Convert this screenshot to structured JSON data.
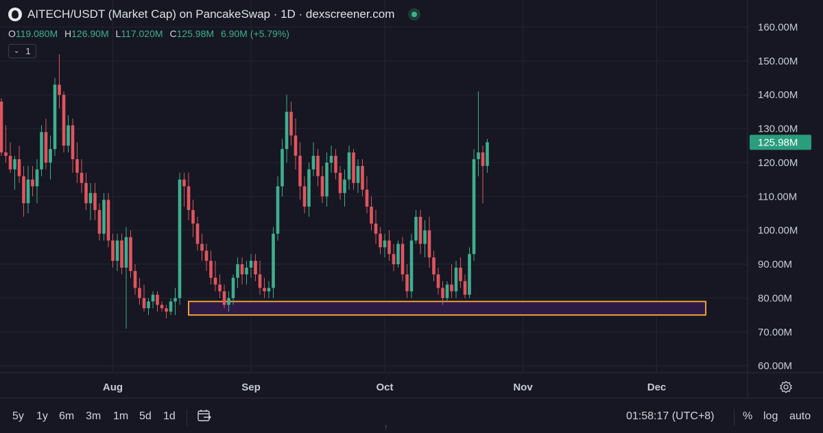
{
  "header": {
    "title": "AITECH/USDT (Market Cap) on PancakeSwap · 1D · dexscreener.com"
  },
  "ohlc": {
    "o_label": "O",
    "o_value": "119.080M",
    "h_label": "H",
    "h_value": "126.90M",
    "l_label": "L",
    "l_value": "117.020M",
    "c_label": "C",
    "c_value": "125.98M",
    "change": "6.90M (+5.79%)"
  },
  "indicator_toggle": {
    "count": "1"
  },
  "ranges": [
    "5y",
    "1y",
    "6m",
    "3m",
    "1m",
    "5d",
    "1d"
  ],
  "footer": {
    "time": "01:58:17 (UTC+8)",
    "percent": "%",
    "log": "log",
    "auto": "auto"
  },
  "colors": {
    "background": "#161722",
    "up": "#3fae8f",
    "down": "#e0555f",
    "grid": "#22242f",
    "zone_border": "#f0a03a",
    "zone_fill": "#2d1a45",
    "price_tag": "#2a9d7c"
  },
  "chart_data": {
    "type": "candlestick",
    "y_axis": {
      "ticks": [
        60,
        70,
        80,
        90,
        100,
        110,
        120,
        130,
        140,
        150,
        160
      ],
      "tick_labels": [
        "60.00M",
        "70.00M",
        "80.00M",
        "90.00M",
        "100.00M",
        "110.00M",
        "120.00M",
        "130.00M",
        "140.00M",
        "150.00M",
        "160.00M"
      ],
      "range": [
        58,
        168
      ],
      "unit": "M"
    },
    "x_axis": {
      "labels": [
        "Aug",
        "Sep",
        "Oct",
        "Nov",
        "Dec"
      ],
      "label_dates": [
        "2024-08-01",
        "2024-09-01",
        "2024-10-01",
        "2024-11-01",
        "2024-12-01"
      ],
      "first_candle_date": "2024-07-07"
    },
    "last_price": "125.98M",
    "support_zone": {
      "low": 75,
      "high": 79,
      "start_date": "2024-08-18",
      "end_date": "2024-12-12"
    },
    "candles": [
      [
        138,
        139,
        122,
        123
      ],
      [
        123,
        131,
        120,
        122
      ],
      [
        122,
        126,
        117,
        118
      ],
      [
        118,
        122,
        112,
        121
      ],
      [
        121,
        125,
        114,
        116
      ],
      [
        116,
        119,
        104,
        108
      ],
      [
        108,
        119,
        105,
        115
      ],
      [
        115,
        119,
        110,
        113
      ],
      [
        113,
        121,
        108,
        118
      ],
      [
        118,
        131,
        116,
        129
      ],
      [
        129,
        133,
        118,
        120
      ],
      [
        120,
        128,
        115,
        124
      ],
      [
        124,
        145,
        122,
        143
      ],
      [
        143,
        152,
        136,
        140
      ],
      [
        140,
        141,
        123,
        125
      ],
      [
        125,
        134,
        123,
        131
      ],
      [
        131,
        133,
        117,
        121
      ],
      [
        121,
        126,
        114,
        117
      ],
      [
        117,
        121,
        111,
        114
      ],
      [
        114,
        117,
        106,
        108
      ],
      [
        108,
        114,
        103,
        111
      ],
      [
        111,
        114,
        103,
        106
      ],
      [
        106,
        108,
        97,
        99
      ],
      [
        99,
        111,
        97,
        109
      ],
      [
        109,
        111,
        95,
        97
      ],
      [
        97,
        99,
        89,
        91
      ],
      [
        91,
        99,
        88,
        97
      ],
      [
        97,
        99,
        87,
        89
      ],
      [
        89,
        101,
        71,
        98
      ],
      [
        98,
        100,
        86,
        88
      ],
      [
        88,
        90,
        81,
        83
      ],
      [
        83,
        86,
        78,
        80
      ],
      [
        80,
        84,
        76,
        77
      ],
      [
        77,
        80,
        75,
        79
      ],
      [
        79,
        82,
        77,
        81
      ],
      [
        81,
        82,
        76,
        78
      ],
      [
        78,
        79,
        76,
        77
      ],
      [
        77,
        78,
        74,
        76
      ],
      [
        76,
        80,
        75,
        79
      ],
      [
        79,
        83,
        75,
        80
      ],
      [
        80,
        117,
        78,
        115
      ],
      [
        115,
        117,
        107,
        113
      ],
      [
        113,
        117,
        103,
        106
      ],
      [
        106,
        109,
        98,
        102
      ],
      [
        102,
        104,
        94,
        96
      ],
      [
        96,
        99,
        91,
        94
      ],
      [
        94,
        96,
        88,
        91
      ],
      [
        91,
        94,
        84,
        86
      ],
      [
        86,
        91,
        82,
        84
      ],
      [
        84,
        87,
        80,
        82
      ],
      [
        82,
        84,
        77,
        78
      ],
      [
        78,
        82,
        76,
        80
      ],
      [
        80,
        87,
        78,
        86
      ],
      [
        86,
        92,
        83,
        90
      ],
      [
        90,
        92,
        84,
        87
      ],
      [
        87,
        91,
        84,
        89
      ],
      [
        89,
        93,
        86,
        91
      ],
      [
        91,
        93,
        85,
        87
      ],
      [
        87,
        91,
        81,
        83
      ],
      [
        83,
        86,
        80,
        82
      ],
      [
        82,
        85,
        80,
        83
      ],
      [
        83,
        101,
        80,
        99
      ],
      [
        99,
        116,
        97,
        113
      ],
      [
        113,
        127,
        110,
        124
      ],
      [
        124,
        140,
        120,
        135
      ],
      [
        135,
        138,
        125,
        128
      ],
      [
        128,
        133,
        118,
        122
      ],
      [
        122,
        126,
        109,
        113
      ],
      [
        113,
        116,
        105,
        107
      ],
      [
        107,
        120,
        104,
        118
      ],
      [
        118,
        126,
        116,
        122
      ],
      [
        122,
        124,
        113,
        116
      ],
      [
        116,
        119,
        108,
        110
      ],
      [
        110,
        123,
        107,
        120
      ],
      [
        120,
        125,
        117,
        122
      ],
      [
        122,
        124,
        115,
        117
      ],
      [
        117,
        119,
        109,
        111
      ],
      [
        111,
        118,
        107,
        115
      ],
      [
        115,
        125,
        112,
        123
      ],
      [
        123,
        124,
        112,
        114
      ],
      [
        114,
        121,
        111,
        119
      ],
      [
        119,
        121,
        110,
        112
      ],
      [
        112,
        116,
        105,
        107
      ],
      [
        107,
        110,
        100,
        102
      ],
      [
        102,
        106,
        96,
        99
      ],
      [
        99,
        101,
        93,
        95
      ],
      [
        95,
        99,
        92,
        97
      ],
      [
        97,
        100,
        91,
        93
      ],
      [
        93,
        96,
        88,
        90
      ],
      [
        90,
        97,
        89,
        96
      ],
      [
        96,
        98,
        85,
        87
      ],
      [
        87,
        90,
        80,
        82
      ],
      [
        82,
        99,
        80,
        97
      ],
      [
        97,
        106,
        96,
        104
      ],
      [
        104,
        106,
        93,
        96
      ],
      [
        96,
        103,
        92,
        100
      ],
      [
        100,
        104,
        89,
        92
      ],
      [
        92,
        94,
        85,
        87
      ],
      [
        87,
        89,
        81,
        83
      ],
      [
        83,
        85,
        78,
        80
      ],
      [
        80,
        85,
        79,
        84
      ],
      [
        84,
        90,
        80,
        82
      ],
      [
        82,
        91,
        80,
        89
      ],
      [
        89,
        92,
        83,
        85
      ],
      [
        85,
        87,
        80,
        81
      ],
      [
        81,
        95,
        80,
        93
      ],
      [
        93,
        124,
        91,
        121
      ],
      [
        121,
        141,
        116,
        123
      ],
      [
        123,
        125,
        108,
        119
      ],
      [
        119,
        127,
        117,
        126
      ]
    ]
  }
}
